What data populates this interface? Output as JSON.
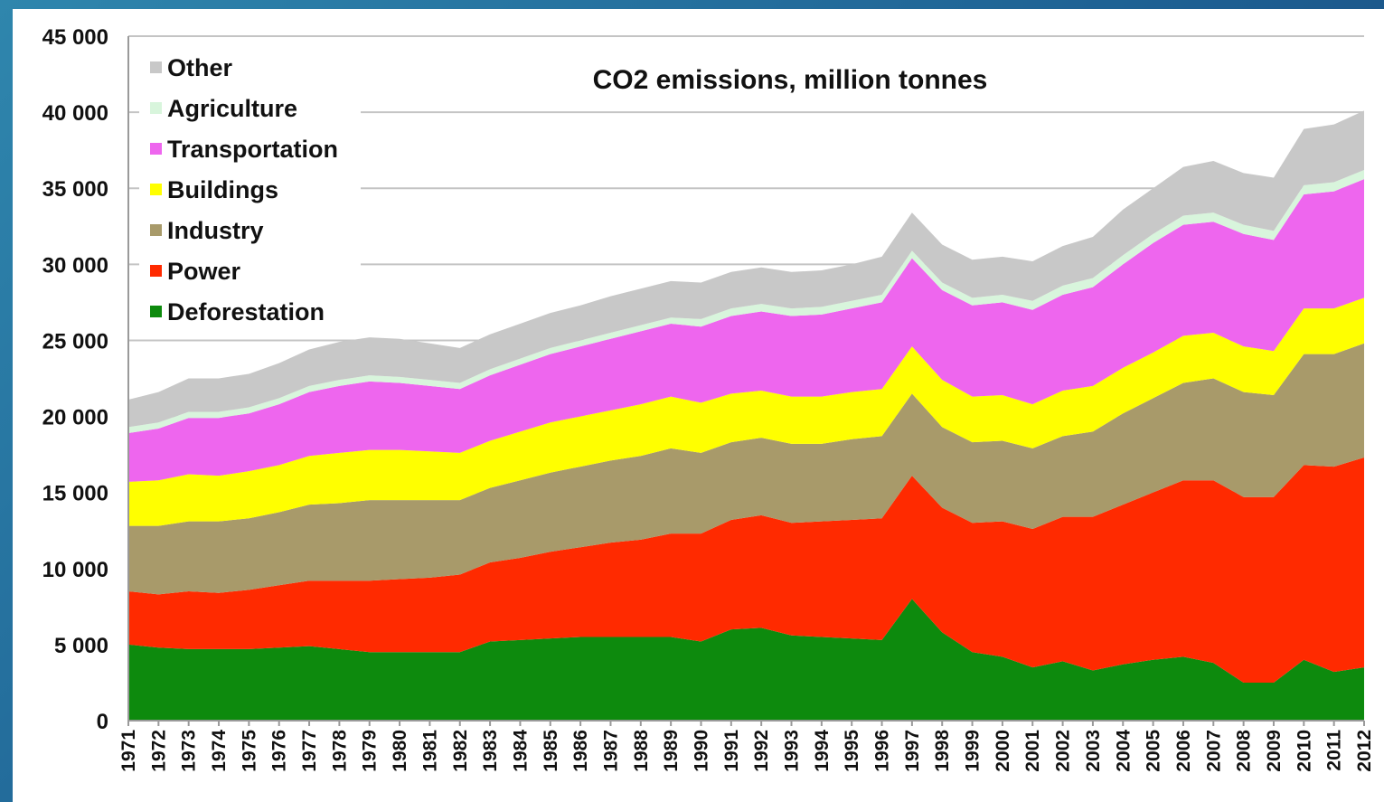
{
  "chart_data": {
    "type": "area",
    "stacked": true,
    "title": "CO2 emissions, million tonnes",
    "xlabel": "",
    "ylabel": "",
    "ylim": [
      0,
      45000
    ],
    "yticks": [
      0,
      5000,
      10000,
      15000,
      20000,
      25000,
      30000,
      35000,
      40000,
      45000
    ],
    "ytick_labels": [
      "0",
      "5 000",
      "10 000",
      "15 000",
      "20 000",
      "25 000",
      "30 000",
      "35 000",
      "40 000",
      "45 000"
    ],
    "grid": true,
    "legend_position": "top-left",
    "x": [
      "1971",
      "1972",
      "1973",
      "1974",
      "1975",
      "1976",
      "1977",
      "1978",
      "1979",
      "1980",
      "1981",
      "1982",
      "1983",
      "1984",
      "1985",
      "1986",
      "1987",
      "1988",
      "1989",
      "1990",
      "1991",
      "1992",
      "1993",
      "1994",
      "1995",
      "1996",
      "1997",
      "1998",
      "1999",
      "2000",
      "2001",
      "2002",
      "2003",
      "2004",
      "2005",
      "2006",
      "2007",
      "2008",
      "2009",
      "2010",
      "2011",
      "2012"
    ],
    "series": [
      {
        "name": "Deforestation",
        "color": "#0d8a0d",
        "values": [
          5000,
          4800,
          4700,
          4700,
          4700,
          4800,
          4900,
          4700,
          4500,
          4500,
          4500,
          4500,
          5200,
          5300,
          5400,
          5500,
          5500,
          5500,
          5500,
          5200,
          6000,
          6100,
          5600,
          5500,
          5400,
          5300,
          8000,
          5800,
          4500,
          4200,
          3500,
          3900,
          3300,
          3700,
          4000,
          4200,
          3800,
          2500,
          2500,
          4000,
          3200,
          3500
        ]
      },
      {
        "name": "Power",
        "color": "#ff2a00",
        "values": [
          3500,
          3500,
          3800,
          3700,
          3900,
          4100,
          4300,
          4500,
          4700,
          4800,
          4900,
          5100,
          5200,
          5400,
          5700,
          5900,
          6200,
          6400,
          6800,
          7100,
          7200,
          7400,
          7400,
          7600,
          7800,
          8000,
          8100,
          8200,
          8500,
          8900,
          9100,
          9500,
          10100,
          10500,
          11000,
          11600,
          12000,
          12200,
          12200,
          12800,
          13500,
          13800
        ]
      },
      {
        "name": "Industry",
        "color": "#a89a6a",
        "values": [
          4300,
          4500,
          4600,
          4700,
          4700,
          4800,
          5000,
          5100,
          5300,
          5200,
          5100,
          4900,
          4900,
          5100,
          5200,
          5300,
          5400,
          5500,
          5600,
          5300,
          5100,
          5100,
          5200,
          5100,
          5300,
          5400,
          5400,
          5300,
          5300,
          5300,
          5300,
          5300,
          5600,
          6000,
          6200,
          6400,
          6700,
          6900,
          6700,
          7300,
          7400,
          7500
        ]
      },
      {
        "name": "Buildings",
        "color": "#ffff00",
        "values": [
          2900,
          3000,
          3100,
          3000,
          3100,
          3100,
          3200,
          3300,
          3300,
          3300,
          3200,
          3100,
          3100,
          3200,
          3300,
          3300,
          3300,
          3400,
          3400,
          3300,
          3200,
          3100,
          3100,
          3100,
          3100,
          3100,
          3100,
          3100,
          3000,
          3000,
          2900,
          3000,
          3000,
          3000,
          3000,
          3100,
          3000,
          3000,
          2900,
          3000,
          3000,
          3000
        ]
      },
      {
        "name": "Transportation",
        "color": "#ee66ee",
        "values": [
          3200,
          3400,
          3700,
          3800,
          3800,
          4000,
          4200,
          4400,
          4500,
          4400,
          4300,
          4200,
          4300,
          4400,
          4500,
          4600,
          4700,
          4800,
          4800,
          5000,
          5100,
          5200,
          5300,
          5400,
          5500,
          5700,
          5800,
          5900,
          6000,
          6100,
          6200,
          6300,
          6500,
          6800,
          7200,
          7300,
          7300,
          7400,
          7300,
          7500,
          7700,
          7800
        ]
      },
      {
        "name": "Agriculture",
        "color": "#d8f5dc",
        "values": [
          400,
          400,
          400,
          400,
          400,
          400,
          400,
          400,
          400,
          400,
          400,
          400,
          400,
          400,
          400,
          400,
          400,
          400,
          400,
          500,
          500,
          500,
          500,
          500,
          500,
          500,
          500,
          500,
          500,
          500,
          600,
          600,
          600,
          600,
          600,
          600,
          600,
          600,
          600,
          600,
          600,
          600
        ]
      },
      {
        "name": "Other",
        "color": "#c8c8c8",
        "values": [
          1800,
          2000,
          2200,
          2200,
          2200,
          2300,
          2400,
          2500,
          2500,
          2500,
          2400,
          2300,
          2300,
          2300,
          2300,
          2300,
          2400,
          2400,
          2400,
          2400,
          2400,
          2400,
          2400,
          2400,
          2400,
          2500,
          2500,
          2500,
          2500,
          2500,
          2600,
          2600,
          2700,
          3000,
          3000,
          3200,
          3400,
          3400,
          3500,
          3700,
          3800,
          3900
        ]
      }
    ]
  }
}
